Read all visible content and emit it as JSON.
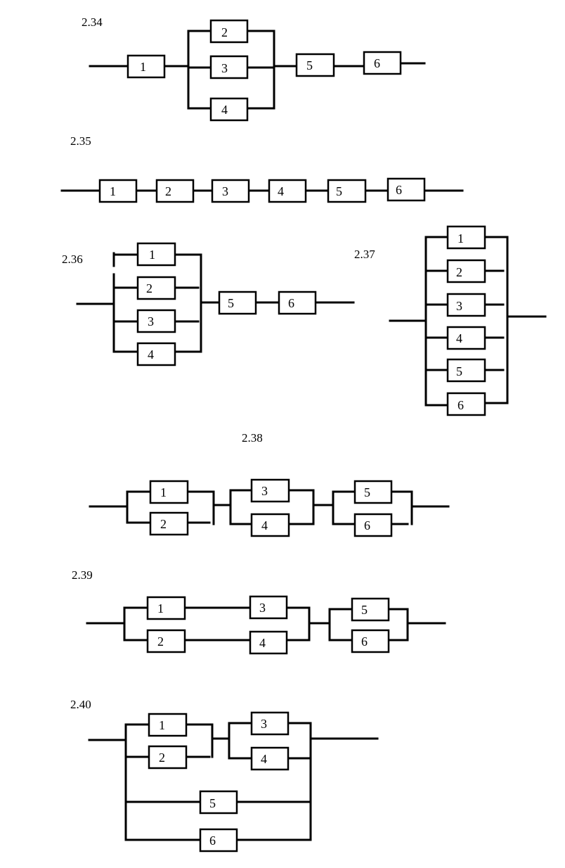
{
  "diagrams": [
    {
      "id": "2.34",
      "label": "2.34",
      "blocks": [
        "1",
        "2",
        "3",
        "4",
        "5",
        "6"
      ]
    },
    {
      "id": "2.35",
      "label": "2.35",
      "blocks": [
        "1",
        "2",
        "3",
        "4",
        "5",
        "6"
      ]
    },
    {
      "id": "2.36",
      "label": "2.36",
      "blocks": [
        "1",
        "2",
        "3",
        "4",
        "5",
        "6"
      ]
    },
    {
      "id": "2.37",
      "label": "2.37",
      "blocks": [
        "1",
        "2",
        "3",
        "4",
        "5",
        "6"
      ]
    },
    {
      "id": "2.38",
      "label": "2.38",
      "blocks": [
        "1",
        "2",
        "3",
        "4",
        "5",
        "6"
      ]
    },
    {
      "id": "2.39",
      "label": "2.39",
      "blocks": [
        "1",
        "2",
        "3",
        "4",
        "5",
        "6"
      ]
    },
    {
      "id": "2.40",
      "label": "2.40",
      "blocks": [
        "1",
        "2",
        "3",
        "4",
        "5",
        "6"
      ]
    }
  ]
}
